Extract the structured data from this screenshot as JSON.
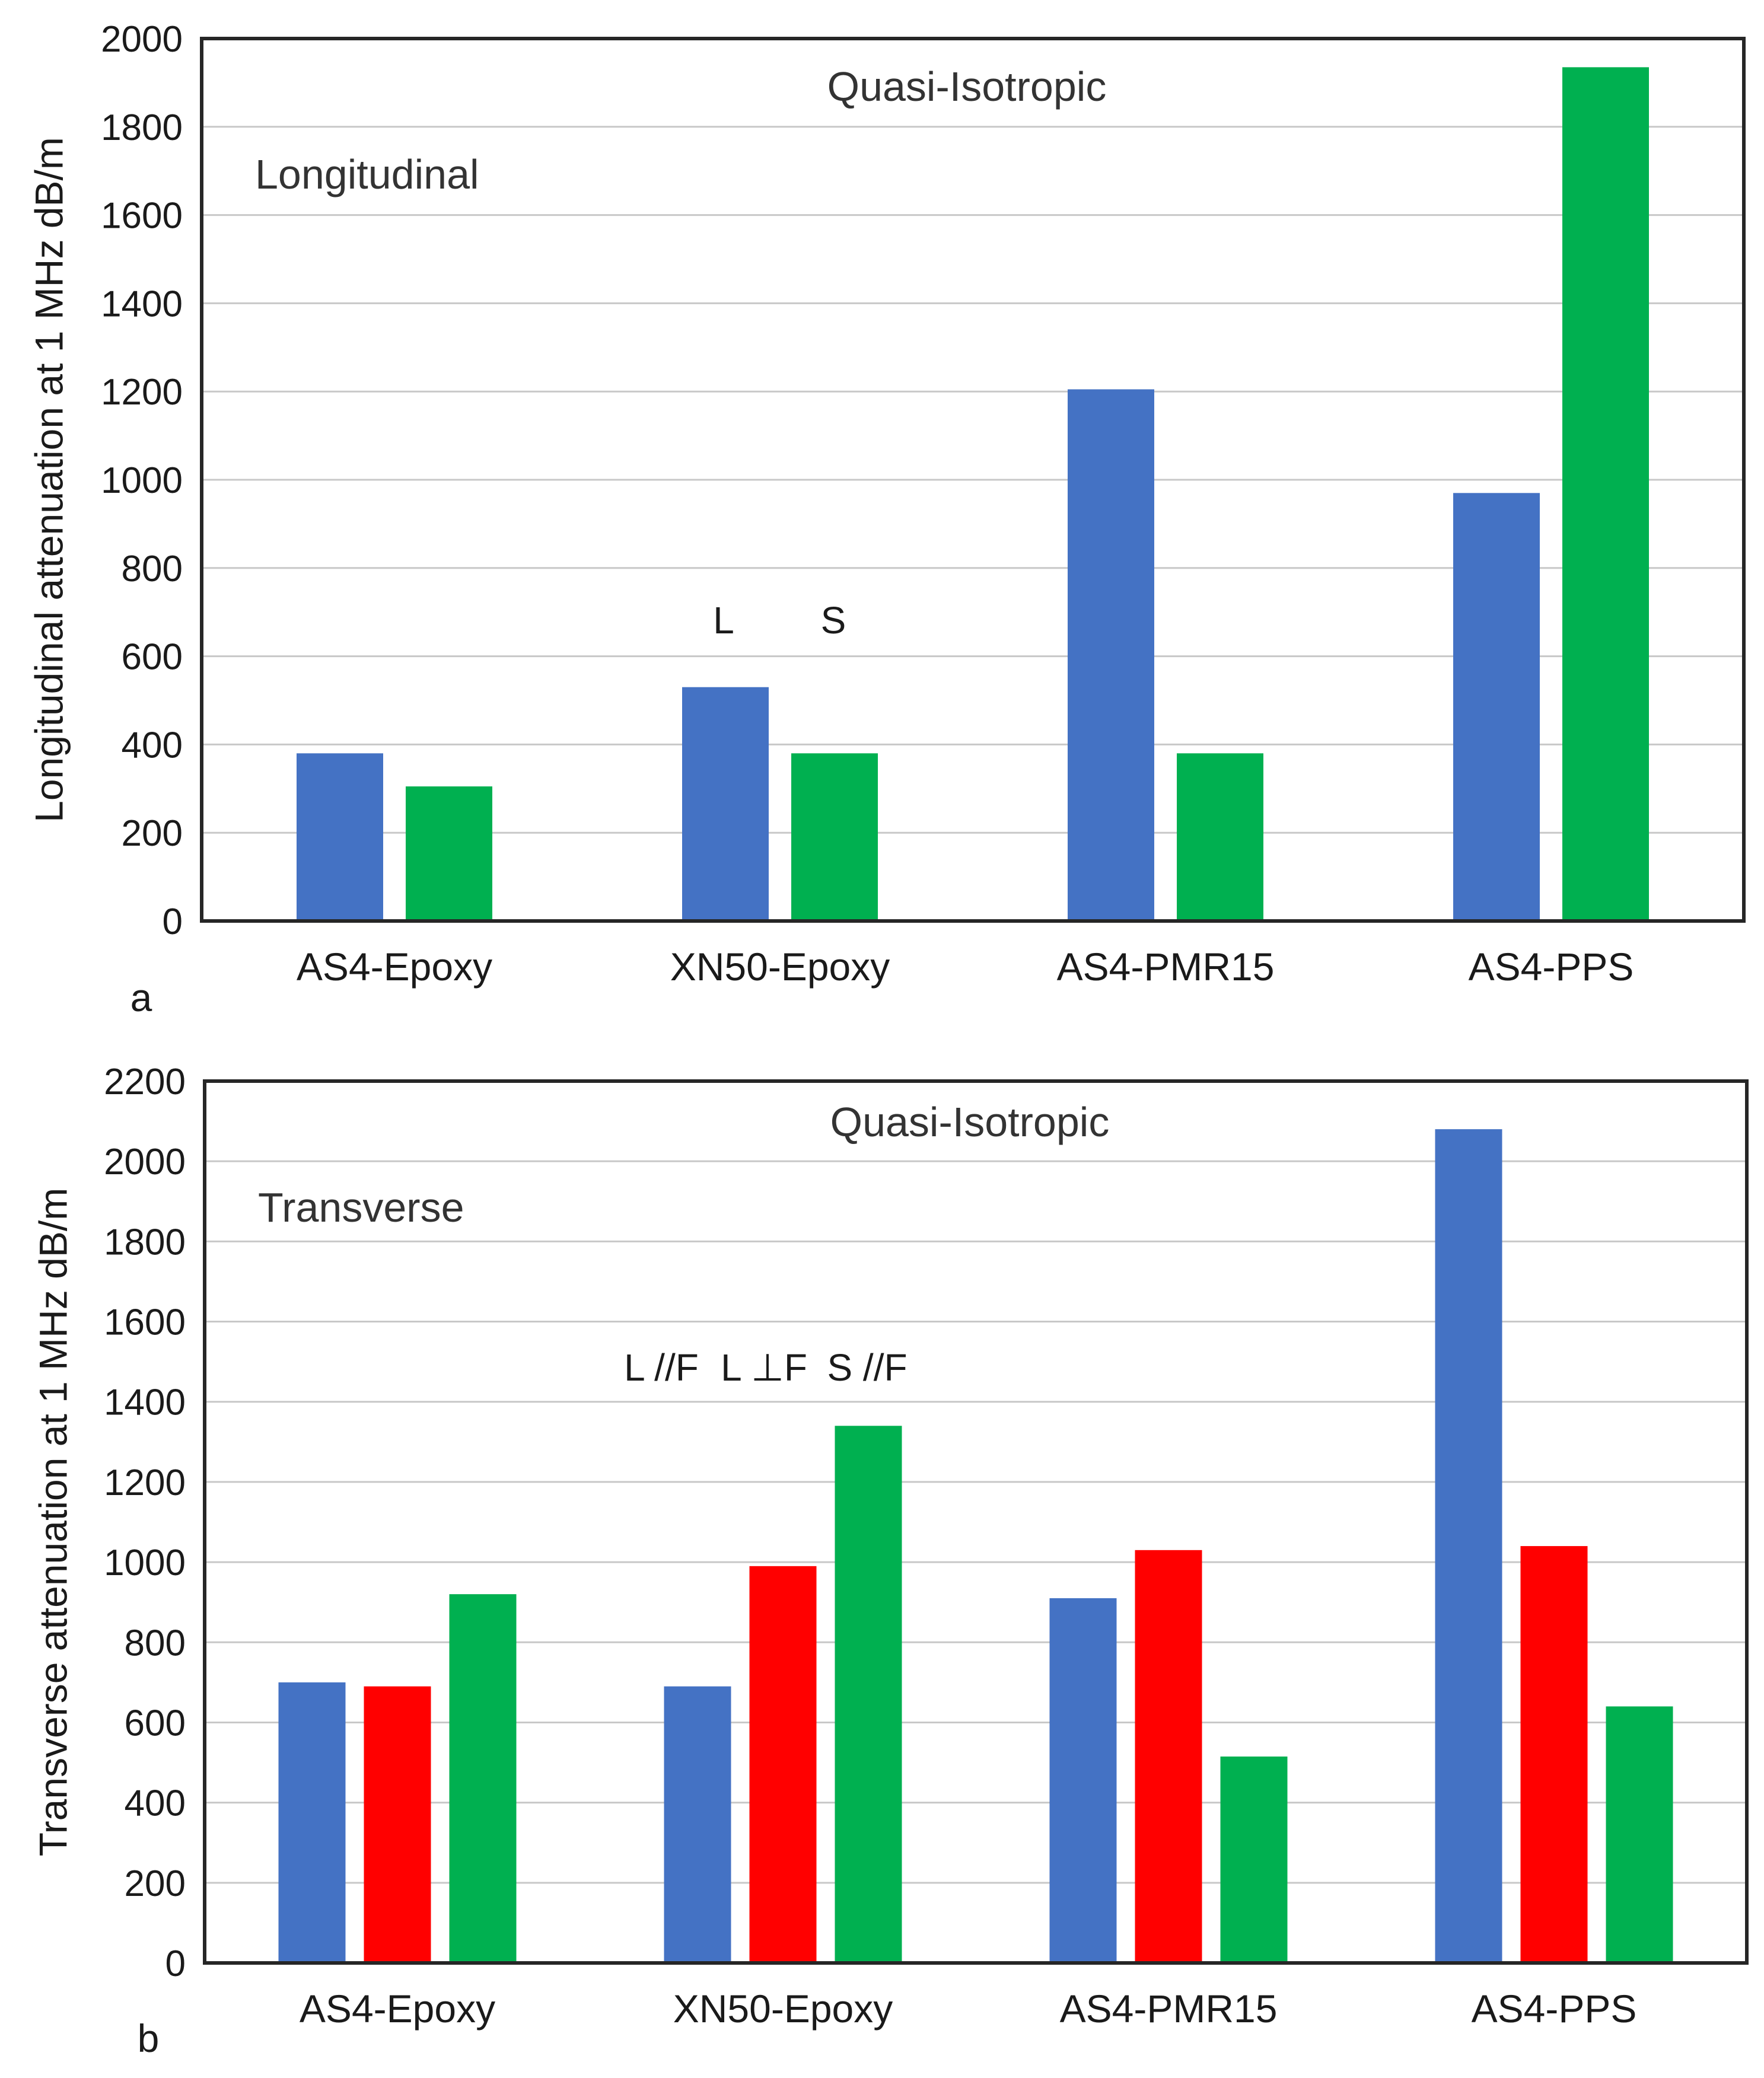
{
  "chart_data": [
    {
      "type": "bar",
      "panel_label": "a",
      "title": "Quasi-Isotropic",
      "annotation": "Longitudinal",
      "ylabel": "Longitudinal attenuation at 1 MHz  dB/m",
      "xlabel": "",
      "categories": [
        "AS4-Epoxy",
        "XN50-Epoxy",
        "AS4-PMR15",
        "AS4-PPS"
      ],
      "ylim": [
        0,
        2000
      ],
      "yticks": [
        0,
        200,
        400,
        600,
        800,
        1000,
        1200,
        1400,
        1600,
        1800,
        2000
      ],
      "grid": true,
      "legend_position": "above XN50-Epoxy bars",
      "series": [
        {
          "name": "L",
          "color": "#4472C4",
          "values": [
            380,
            530,
            1205,
            970
          ]
        },
        {
          "name": "S",
          "color": "#00B050",
          "values": [
            305,
            380,
            380,
            1935
          ]
        }
      ]
    },
    {
      "type": "bar",
      "panel_label": "b",
      "title": "Quasi-Isotropic",
      "annotation": "Transverse",
      "ylabel": "Transverse attenuation at 1 MHz  dB/m",
      "xlabel": "",
      "categories": [
        "AS4-Epoxy",
        "XN50-Epoxy",
        "AS4-PMR15",
        "AS4-PPS"
      ],
      "ylim": [
        0,
        2200
      ],
      "yticks": [
        0,
        200,
        400,
        600,
        800,
        1000,
        1200,
        1400,
        1600,
        1800,
        2000,
        2200
      ],
      "grid": true,
      "legend_position": "above XN50-Epoxy bars",
      "series": [
        {
          "name": "L //F",
          "color": "#4472C4",
          "values": [
            700,
            690,
            910,
            2080
          ]
        },
        {
          "name": "L ⊥F",
          "color": "#FF0000",
          "values": [
            690,
            990,
            1030,
            1040
          ]
        },
        {
          "name": "S //F",
          "color": "#00B050",
          "values": [
            920,
            1340,
            515,
            640
          ]
        }
      ]
    }
  ]
}
